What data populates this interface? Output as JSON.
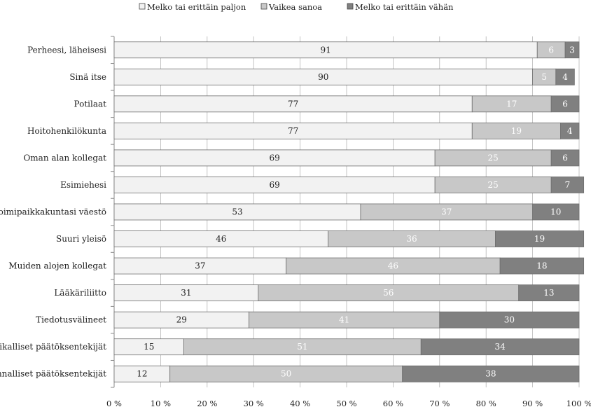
{
  "chart_data": {
    "type": "bar",
    "orientation": "horizontal",
    "stacked": true,
    "percent_stacked": true,
    "xlim": [
      0,
      100
    ],
    "x_ticks": [
      "0 %",
      "10 %",
      "20 %",
      "30 %",
      "40 %",
      "50 %",
      "60 %",
      "70 %",
      "80 %",
      "90 %",
      "100 %"
    ],
    "grid": true,
    "legend_position": "top",
    "categories": [
      "Perheesi, läheisesi",
      "Sinä itse",
      "Potilaat",
      "Hoitohenkilökunta",
      "Oman alan kollegat",
      "Esimiehesi",
      "Toimipaikkakuntasi väestö",
      "Suuri yleisö",
      "Muiden alojen kollegat",
      "Lääkäriliitto",
      "Tiedotusvälineet",
      "Paikalliset päätöksentekijät",
      "Valtakunnalliset päätöksentekijät"
    ],
    "series": [
      {
        "name": "Melko tai erittäin paljon",
        "color": "#f2f2f2",
        "label_color": "#222222",
        "values": [
          91,
          90,
          77,
          77,
          69,
          69,
          53,
          46,
          37,
          31,
          29,
          15,
          12
        ]
      },
      {
        "name": "Vaikea sanoa",
        "color": "#c8c8c8",
        "label_color": "#ffffff",
        "values": [
          6,
          5,
          17,
          19,
          25,
          25,
          37,
          36,
          46,
          56,
          41,
          51,
          50
        ]
      },
      {
        "name": "Melko tai erittäin vähän",
        "color": "#808080",
        "label_color": "#ffffff",
        "values": [
          3,
          4,
          6,
          4,
          6,
          7,
          10,
          19,
          18,
          13,
          30,
          34,
          38
        ]
      }
    ]
  }
}
